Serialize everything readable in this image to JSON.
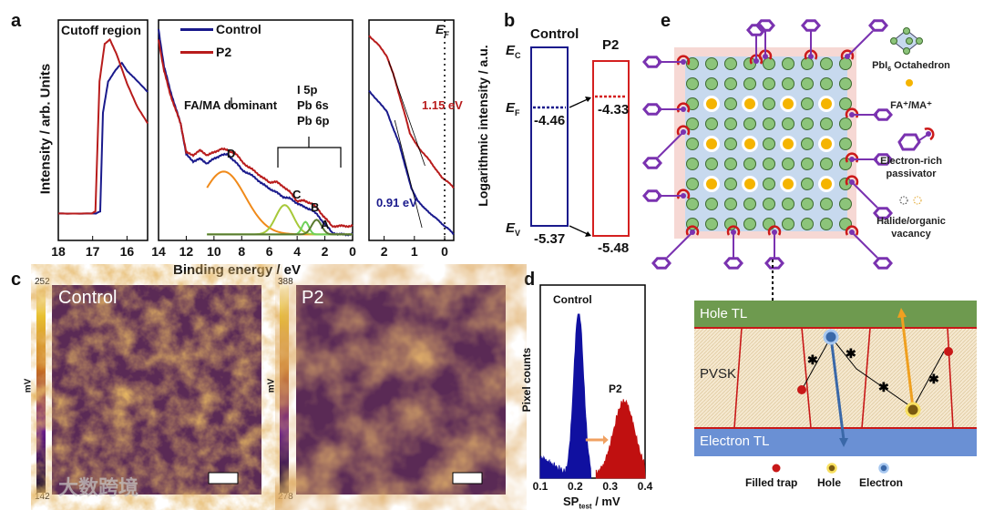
{
  "panels": {
    "a": "a",
    "b": "b",
    "c": "c",
    "d": "d",
    "e": "e"
  },
  "chart_data": [
    {
      "id": "a-cutoff",
      "type": "line",
      "title": "Cutoff region",
      "ylabel": "Intensity / arb. Units",
      "xlim": [
        18,
        15.4
      ],
      "xticks": [
        18,
        17,
        16
      ],
      "series": [
        {
          "name": "Control",
          "color": "#1a1a8c",
          "x": [
            18,
            16.9,
            16.78,
            16.7,
            16.55,
            16.35,
            16.15,
            16.0,
            15.8,
            15.4
          ],
          "y": [
            0.12,
            0.12,
            0.13,
            0.6,
            0.75,
            0.8,
            0.84,
            0.8,
            0.77,
            0.7
          ]
        },
        {
          "name": "P2",
          "color": "#b81c1c",
          "x": [
            18,
            17.02,
            16.92,
            16.8,
            16.65,
            16.5,
            16.3,
            16.0,
            15.7,
            15.4
          ],
          "y": [
            0.12,
            0.12,
            0.13,
            0.75,
            0.93,
            0.95,
            0.88,
            0.74,
            0.63,
            0.55
          ]
        }
      ]
    },
    {
      "id": "a-valence",
      "type": "line",
      "xlabel": "Binding energy / eV",
      "xlim": [
        14,
        0
      ],
      "xticks": [
        14,
        12,
        10,
        8,
        6,
        4,
        2,
        0
      ],
      "legend": [
        "Control",
        "P2"
      ],
      "legend_position": "top-left",
      "annotations": {
        "fa_ma": "FA/MA dominant",
        "orbitals": [
          "I 5p",
          "Pb 6s",
          "Pb 6p"
        ],
        "peaks": [
          "D",
          "C",
          "B",
          "A"
        ]
      },
      "series": [
        {
          "name": "Control",
          "color": "#1a1a8c",
          "x": [
            14,
            13.6,
            13.2,
            12.8,
            12.4,
            12,
            11.5,
            11,
            10.5,
            10,
            9.5,
            9,
            8.5,
            8,
            7.5,
            7,
            6.5,
            6,
            5.5,
            5,
            4.5,
            4,
            3.5,
            3,
            2.5,
            2,
            1.5,
            1,
            0.5,
            0
          ],
          "y": [
            1.0,
            0.82,
            0.72,
            0.63,
            0.55,
            0.4,
            0.37,
            0.38,
            0.36,
            0.38,
            0.4,
            0.4,
            0.37,
            0.33,
            0.31,
            0.29,
            0.26,
            0.24,
            0.22,
            0.2,
            0.19,
            0.17,
            0.15,
            0.14,
            0.11,
            0.07,
            0.03,
            0.02,
            0.02,
            0.02
          ]
        },
        {
          "name": "P2",
          "color": "#b81c1c",
          "x": [
            14,
            13.6,
            13.2,
            12.8,
            12.4,
            12,
            11.5,
            11,
            10.5,
            10,
            9.5,
            9,
            8.5,
            8,
            7.5,
            7,
            6.5,
            6,
            5.5,
            5,
            4.5,
            4,
            3.5,
            3,
            2.5,
            2,
            1.5,
            1,
            0.5,
            0
          ],
          "y": [
            0.95,
            0.8,
            0.7,
            0.62,
            0.55,
            0.41,
            0.4,
            0.42,
            0.4,
            0.41,
            0.43,
            0.42,
            0.41,
            0.37,
            0.34,
            0.32,
            0.29,
            0.27,
            0.27,
            0.25,
            0.22,
            0.18,
            0.18,
            0.17,
            0.14,
            0.1,
            0.06,
            0.06,
            0.06,
            0.06
          ]
        }
      ],
      "fits": [
        {
          "name": "D",
          "color": "#f08a1a",
          "center": 9.3,
          "amplitude": 0.3,
          "width": 2.2,
          "range": [
            10.5,
            0
          ]
        },
        {
          "name": "C",
          "color": "#a7c93a",
          "center": 4.9,
          "amplitude": 0.14,
          "width": 0.9,
          "range": [
            10.5,
            0
          ]
        },
        {
          "name": "B",
          "color": "#6fd15a",
          "center": 3.4,
          "amplitude": 0.06,
          "width": 0.35,
          "range": [
            10.5,
            0
          ]
        },
        {
          "name": "A",
          "color": "#5a7a30",
          "center": 2.6,
          "amplitude": 0.07,
          "width": 0.5,
          "range": [
            10.5,
            0
          ]
        }
      ]
    },
    {
      "id": "a-log",
      "type": "line",
      "ylabel": "Logarithmic intensity / a.u.",
      "xlim": [
        2.5,
        -0.3
      ],
      "xticks": [
        2,
        1,
        0
      ],
      "ef_label": "E",
      "ef_sub": "F",
      "series": [
        {
          "name": "Control",
          "color": "#1a1a8c",
          "x": [
            2.5,
            2.2,
            1.9,
            1.7,
            1.5,
            1.3,
            1.1,
            0.9,
            0.7,
            0.5,
            0.3,
            0.1,
            -0.1,
            -0.3
          ],
          "y": [
            0.7,
            0.65,
            0.6,
            0.52,
            0.45,
            0.34,
            0.24,
            0.18,
            0.15,
            0.12,
            0.1,
            0.07,
            0.05,
            0.02
          ]
        },
        {
          "name": "P2",
          "color": "#b81c1c",
          "x": [
            2.5,
            2.2,
            1.9,
            1.7,
            1.5,
            1.3,
            1.15,
            1.0,
            0.8,
            0.5,
            0.3,
            0.1,
            -0.1,
            -0.3
          ],
          "y": [
            0.96,
            0.92,
            0.86,
            0.78,
            0.68,
            0.58,
            0.5,
            0.46,
            0.42,
            0.37,
            0.33,
            0.29,
            0.27,
            0.24
          ]
        }
      ],
      "onsets": [
        {
          "label": "1.15 eV",
          "color": "#b81c1c"
        },
        {
          "label": "0.91 eV",
          "color": "#1a1a8c"
        }
      ]
    },
    {
      "id": "b-levels",
      "type": "diagram",
      "level_labels": {
        "ec": "E",
        "ec_sub": "C",
        "ef": "E",
        "ef_sub": "F",
        "ev": "E",
        "ev_sub": "V"
      },
      "samples": [
        {
          "name": "Control",
          "color": "#1a1a8c",
          "ef": -4.46,
          "ev": -5.37,
          "ef_label": "-4.46",
          "ev_label": "-5.37"
        },
        {
          "name": "P2",
          "color": "#d42020",
          "ef": -4.33,
          "ev": -5.48,
          "ef_label": "-4.33",
          "ev_label": "-5.48"
        }
      ]
    },
    {
      "id": "c-kpfm",
      "type": "heatmap",
      "unit": "mV",
      "maps": [
        {
          "name": "Control",
          "max": "252",
          "min": "142"
        },
        {
          "name": "P2",
          "max": "388",
          "min": "278"
        }
      ]
    },
    {
      "id": "d-hist",
      "type": "bar",
      "xlabel": "SP",
      "xlabel_sub": "test",
      "xlabel_unit": " / mV",
      "ylabel": "Pixel counts",
      "xlim": [
        0.1,
        0.4
      ],
      "xticks": [
        "0.1",
        "0.2",
        "0.3",
        "0.4"
      ],
      "series": [
        {
          "name": "Control",
          "color": "#1010a0",
          "center": 0.21,
          "sd": 0.014,
          "peak": 1.0,
          "range": [
            0.1,
            0.245
          ]
        },
        {
          "name": "P2",
          "color": "#c01010",
          "center": 0.34,
          "sd": 0.03,
          "peak": 0.45,
          "range": [
            0.26,
            0.4
          ]
        }
      ]
    }
  ],
  "panel_e": {
    "legend": {
      "octahedron": "PbI",
      "octahedron_sub": "6",
      "octahedron_rest": " Octahedron",
      "cation": "FA⁺/MA⁺",
      "passivator": [
        "Electron-rich",
        "passivator"
      ],
      "vacancy": [
        "Halide/organic",
        "vacancy"
      ]
    },
    "device": {
      "hole_tl": "Hole TL",
      "pvsk": "PVSK",
      "electron_tl": "Electron TL"
    },
    "device_legend": {
      "trap": "Filled trap",
      "hole": "Hole",
      "electron": "Electron"
    },
    "colors": {
      "hole_tl": "#6e9a4f",
      "electron_tl": "#6a90d4",
      "octa": "#8cc47a",
      "cation": "#f5b400",
      "passivator": "#7a32b0",
      "anchor": "#cc1a1a"
    }
  },
  "watermark": "大数跨境"
}
